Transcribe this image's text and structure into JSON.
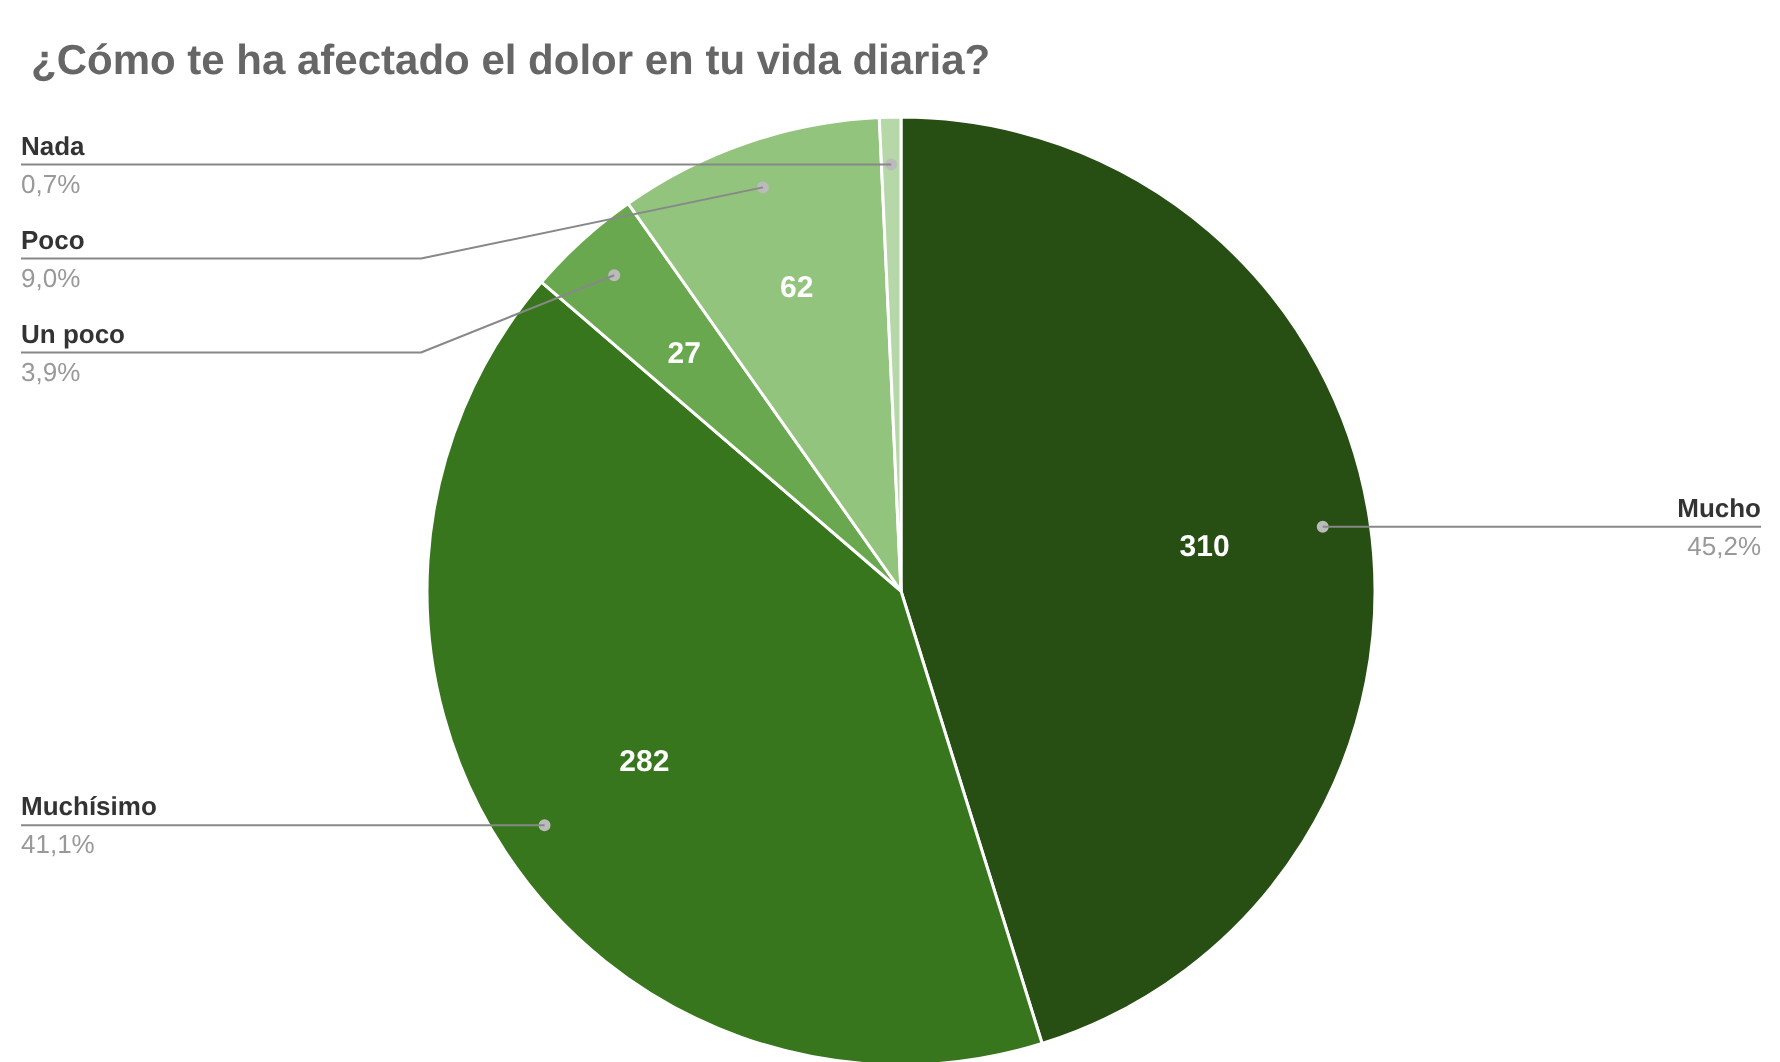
{
  "chart_data": {
    "type": "pie",
    "title": "¿Cómo te ha afectado el dolor en tu vida diaria?",
    "categories": [
      "Mucho",
      "Muchísimo",
      "Un poco",
      "Poco",
      "Nada"
    ],
    "values": [
      310,
      282,
      27,
      62,
      5
    ],
    "value_labels": [
      "310",
      "282",
      "27",
      "62",
      null
    ],
    "colors": [
      "#274e13",
      "#38761d",
      "#6aa84f",
      "#93c47d",
      "#b6d7a8"
    ],
    "annotations": [
      "45,2%",
      "41,1%",
      "3,9%",
      "9,0%",
      "0,7%"
    ]
  }
}
